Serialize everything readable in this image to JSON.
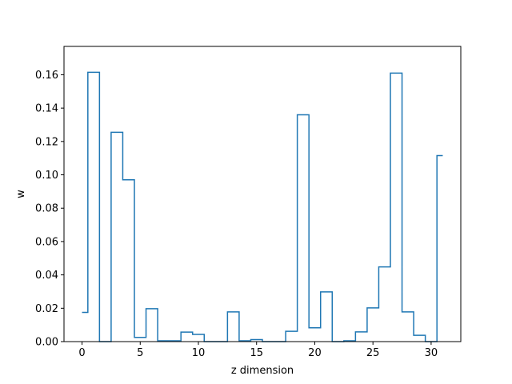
{
  "chart_data": {
    "type": "line",
    "drawstyle": "steps-mid",
    "title": "",
    "xlabel": "z dimension",
    "ylabel": "w",
    "xlim": [
      -1.55,
      32.55
    ],
    "ylim": [
      0.0,
      0.177
    ],
    "grid": false,
    "x_ticks": [
      0,
      5,
      10,
      15,
      20,
      25,
      30
    ],
    "x_tick_labels": [
      "0",
      "5",
      "10",
      "15",
      "20",
      "25",
      "30"
    ],
    "y_ticks": [
      0.0,
      0.02,
      0.04,
      0.06,
      0.08,
      0.1,
      0.12,
      0.14,
      0.16
    ],
    "y_tick_labels": [
      "0.00",
      "0.02",
      "0.04",
      "0.06",
      "0.08",
      "0.10",
      "0.12",
      "0.14",
      "0.16"
    ],
    "series": [
      {
        "color": "#1f77b4",
        "x": [
          0,
          1,
          2,
          3,
          4,
          5,
          6,
          7,
          8,
          9,
          10,
          11,
          12,
          13,
          14,
          15,
          16,
          17,
          18,
          19,
          20,
          21,
          22,
          23,
          24,
          25,
          26,
          27,
          28,
          29,
          30,
          31
        ],
        "y": [
          0.0175,
          0.1615,
          0.0,
          0.1255,
          0.097,
          0.0025,
          0.0197,
          0.0005,
          0.0005,
          0.0057,
          0.0043,
          0.0,
          0.0,
          0.0178,
          0.0005,
          0.0012,
          0.0,
          0.0,
          0.0062,
          0.136,
          0.0083,
          0.0298,
          0.0,
          0.0005,
          0.0058,
          0.0202,
          0.0448,
          0.161,
          0.0178,
          0.0038,
          0.0,
          0.1115
        ]
      }
    ]
  }
}
